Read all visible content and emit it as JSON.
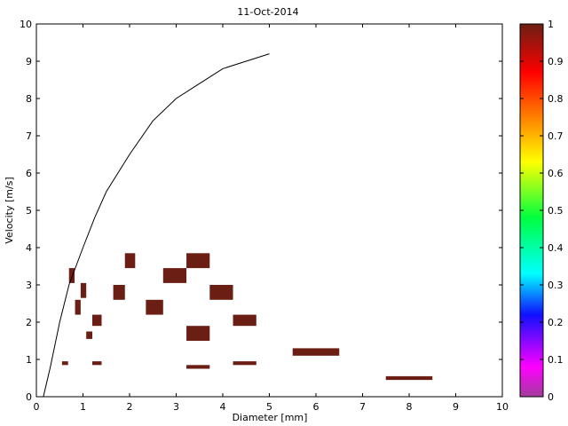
{
  "chart_data": {
    "type": "heatmap",
    "title": "11-Oct-2014",
    "xlabel": "Diameter [mm]",
    "ylabel": "Velocity [m/s]",
    "xlim": [
      0,
      10
    ],
    "ylim": [
      0,
      10
    ],
    "xticks": [
      0,
      1,
      2,
      3,
      4,
      5,
      6,
      7,
      8,
      9,
      10
    ],
    "yticks": [
      0,
      1,
      2,
      3,
      4,
      5,
      6,
      7,
      8,
      9,
      10
    ],
    "grid": false,
    "cell_color": "#6b1f14",
    "curve_color": "#000000",
    "curve": {
      "x": [
        0.15,
        0.3,
        0.5,
        0.7,
        1.0,
        1.25,
        1.5,
        2.0,
        2.5,
        3.0,
        3.5,
        4.0,
        5.0
      ],
      "y": [
        0.0,
        0.8,
        2.0,
        3.0,
        4.0,
        4.8,
        5.5,
        6.5,
        7.4,
        8.0,
        8.4,
        8.8,
        9.2
      ]
    },
    "cells": [
      {
        "x0": 0.55,
        "x1": 0.68,
        "y0": 0.85,
        "y1": 0.95,
        "value": 1
      },
      {
        "x0": 0.7,
        "x1": 0.82,
        "y0": 3.05,
        "y1": 3.45,
        "value": 1
      },
      {
        "x0": 0.83,
        "x1": 0.95,
        "y0": 2.2,
        "y1": 2.6,
        "value": 1
      },
      {
        "x0": 0.95,
        "x1": 1.07,
        "y0": 2.65,
        "y1": 3.05,
        "value": 1
      },
      {
        "x0": 1.07,
        "x1": 1.2,
        "y0": 1.55,
        "y1": 1.75,
        "value": 1
      },
      {
        "x0": 1.2,
        "x1": 1.4,
        "y0": 0.85,
        "y1": 0.95,
        "value": 1
      },
      {
        "x0": 1.2,
        "x1": 1.4,
        "y0": 1.9,
        "y1": 2.2,
        "value": 1
      },
      {
        "x0": 1.65,
        "x1": 1.9,
        "y0": 2.6,
        "y1": 3.0,
        "value": 1
      },
      {
        "x0": 1.9,
        "x1": 2.12,
        "y0": 3.45,
        "y1": 3.85,
        "value": 1
      },
      {
        "x0": 2.35,
        "x1": 2.72,
        "y0": 2.2,
        "y1": 2.6,
        "value": 1
      },
      {
        "x0": 2.72,
        "x1": 3.22,
        "y0": 3.05,
        "y1": 3.45,
        "value": 1
      },
      {
        "x0": 3.22,
        "x1": 3.72,
        "y0": 0.75,
        "y1": 0.85,
        "value": 1
      },
      {
        "x0": 3.22,
        "x1": 3.72,
        "y0": 1.5,
        "y1": 1.9,
        "value": 1
      },
      {
        "x0": 3.22,
        "x1": 3.72,
        "y0": 3.45,
        "y1": 3.85,
        "value": 1
      },
      {
        "x0": 3.72,
        "x1": 4.22,
        "y0": 2.6,
        "y1": 3.0,
        "value": 1
      },
      {
        "x0": 4.22,
        "x1": 4.72,
        "y0": 0.85,
        "y1": 0.95,
        "value": 1
      },
      {
        "x0": 4.22,
        "x1": 4.72,
        "y0": 1.9,
        "y1": 2.2,
        "value": 1
      },
      {
        "x0": 5.5,
        "x1": 6.5,
        "y0": 1.1,
        "y1": 1.3,
        "value": 1
      },
      {
        "x0": 7.5,
        "x1": 8.5,
        "y0": 0.45,
        "y1": 0.55,
        "value": 1
      }
    ],
    "colorbar": {
      "range": [
        0,
        1
      ],
      "ticks": [
        0,
        0.1,
        0.2,
        0.3,
        0.4,
        0.5,
        0.6,
        0.7,
        0.8,
        0.9,
        1
      ],
      "tick_labels": [
        "0",
        "0.1",
        "0.2",
        "0.3",
        "0.4",
        "0.5",
        "0.6",
        "0.7",
        "0.8",
        "0.9",
        "1"
      ],
      "colormap": [
        {
          "value": 0.0,
          "color": "#a23d9c"
        },
        {
          "value": 0.08,
          "color": "#ff00ff"
        },
        {
          "value": 0.22,
          "color": "#1010ff"
        },
        {
          "value": 0.33,
          "color": "#00ffff"
        },
        {
          "value": 0.48,
          "color": "#00ff40"
        },
        {
          "value": 0.63,
          "color": "#ffff00"
        },
        {
          "value": 0.75,
          "color": "#ff8000"
        },
        {
          "value": 0.87,
          "color": "#ff0000"
        },
        {
          "value": 1.0,
          "color": "#6b1f14"
        }
      ]
    }
  }
}
